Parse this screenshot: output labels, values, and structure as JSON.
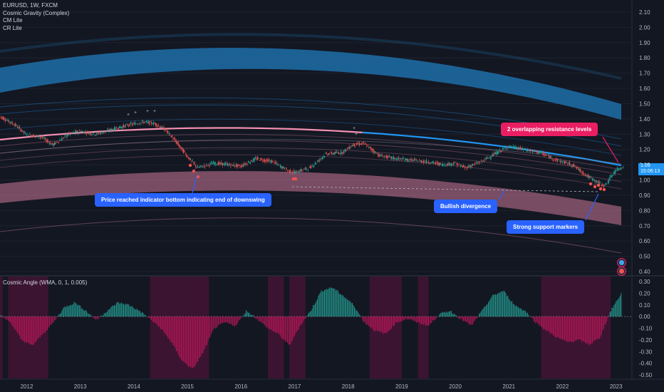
{
  "header": {
    "symbol_line": "EURUSD, 1W, FXCM",
    "indicators": [
      "Cosmic Gravity (Complex)",
      "CM Lite",
      "CR Lite"
    ]
  },
  "indicator_pane": {
    "title": "Cosmic Angle (WMA, 0, 1, 0.005)"
  },
  "price_tag": {
    "price": "1.09",
    "timer": "15:06:13",
    "color": "#2196f3"
  },
  "annotations": [
    {
      "id": "indicator-bottom",
      "text": "Price reached indicator bottom indicating end of downswing",
      "color": "#2962ff"
    },
    {
      "id": "bullish-divergence",
      "text": "Bullish divergence",
      "color": "#2962ff"
    },
    {
      "id": "support-markers",
      "text": "Strong support markers",
      "color": "#2962ff"
    },
    {
      "id": "resistance-levels",
      "text": "2 overlapping resistance levels",
      "color": "#e91e63"
    }
  ],
  "colors": {
    "background": "#131722",
    "bullish": "#26a69a",
    "bearish": "#ef5350",
    "pink_band": "#f48fb1",
    "blue_band": "#2196f3",
    "hist_pink": "#c2185b",
    "hist_green": "#26a69a"
  },
  "chart_data": [
    {
      "type": "line",
      "title": "EURUSD, 1W, FXCM",
      "y_ticks": [
        "2.10",
        "2.00",
        "1.90",
        "1.80",
        "1.70",
        "1.60",
        "1.50",
        "1.40",
        "1.30",
        "1.20",
        "1.10",
        "1.00",
        "0.90",
        "0.80",
        "0.70",
        "0.60",
        "0.50",
        "0.40"
      ],
      "ylim": [
        0.38,
        2.14
      ],
      "x_ticks": [
        "2012",
        "2013",
        "2014",
        "2015",
        "2016",
        "2017",
        "2018",
        "2019",
        "2020",
        "2021",
        "2022",
        "2023"
      ],
      "xlim": [
        2011.5,
        2023.2
      ],
      "series": [
        {
          "x": [
            2011.5,
            2011.8,
            2012.0,
            2012.3,
            2012.5,
            2012.8,
            2013.0,
            2013.3,
            2013.6,
            2013.9,
            2014.2,
            2014.4,
            2014.6,
            2014.8,
            2015.0,
            2015.2,
            2015.5,
            2015.8,
            2016.0,
            2016.3,
            2016.6,
            2016.9,
            2017.0,
            2017.3,
            2017.6,
            2017.9,
            2018.1,
            2018.3,
            2018.6,
            2018.9,
            2019.2,
            2019.5,
            2019.8,
            2020.0,
            2020.2,
            2020.5,
            2020.8,
            2021.0,
            2021.3,
            2021.6,
            2021.9,
            2022.2,
            2022.5,
            2022.7,
            2022.8,
            2023.0,
            2023.15
          ],
          "values": [
            1.42,
            1.36,
            1.3,
            1.28,
            1.23,
            1.3,
            1.32,
            1.3,
            1.33,
            1.36,
            1.38,
            1.37,
            1.33,
            1.25,
            1.16,
            1.08,
            1.11,
            1.1,
            1.09,
            1.14,
            1.12,
            1.06,
            1.05,
            1.08,
            1.17,
            1.18,
            1.23,
            1.24,
            1.16,
            1.14,
            1.13,
            1.12,
            1.1,
            1.11,
            1.08,
            1.12,
            1.18,
            1.22,
            1.2,
            1.18,
            1.13,
            1.1,
            1.02,
            0.98,
            0.96,
            1.06,
            1.09
          ]
        }
      ]
    },
    {
      "type": "bar",
      "title": "Cosmic Angle (WMA, 0, 1, 0.005)",
      "y_ticks": [
        "0.30",
        "0.20",
        "0.10",
        "0.00",
        "-0.10",
        "-0.20",
        "-0.30",
        "-0.40",
        "-0.50"
      ],
      "ylim": [
        -0.55,
        0.33
      ],
      "series": [
        {
          "x": [
            2011.5,
            2011.7,
            2011.9,
            2012.1,
            2012.3,
            2012.5,
            2012.7,
            2012.9,
            2013.1,
            2013.3,
            2013.5,
            2013.7,
            2013.9,
            2014.1,
            2014.3,
            2014.5,
            2014.7,
            2014.9,
            2015.1,
            2015.3,
            2015.5,
            2015.7,
            2015.9,
            2016.1,
            2016.3,
            2016.5,
            2016.7,
            2016.9,
            2017.1,
            2017.3,
            2017.5,
            2017.7,
            2017.9,
            2018.1,
            2018.3,
            2018.5,
            2018.7,
            2018.9,
            2019.1,
            2019.3,
            2019.5,
            2019.7,
            2019.9,
            2020.1,
            2020.3,
            2020.5,
            2020.7,
            2020.9,
            2021.1,
            2021.3,
            2021.5,
            2021.7,
            2021.9,
            2022.1,
            2022.3,
            2022.5,
            2022.7,
            2022.9,
            2023.1
          ],
          "values": [
            0.01,
            -0.05,
            -0.2,
            -0.25,
            -0.15,
            -0.05,
            0.08,
            0.12,
            0.05,
            -0.03,
            0.05,
            0.12,
            0.1,
            0.05,
            -0.02,
            -0.1,
            -0.22,
            -0.38,
            -0.45,
            -0.3,
            -0.1,
            -0.05,
            -0.08,
            0.05,
            -0.02,
            -0.1,
            -0.15,
            -0.25,
            -0.08,
            0.05,
            0.22,
            0.25,
            0.18,
            0.1,
            -0.05,
            -0.12,
            -0.15,
            -0.05,
            -0.02,
            -0.05,
            -0.08,
            0.02,
            0.05,
            -0.02,
            -0.08,
            0.05,
            0.18,
            0.22,
            0.1,
            0.05,
            -0.05,
            -0.12,
            -0.18,
            -0.22,
            -0.2,
            -0.24,
            -0.18,
            0.05,
            0.2
          ]
        }
      ]
    }
  ]
}
